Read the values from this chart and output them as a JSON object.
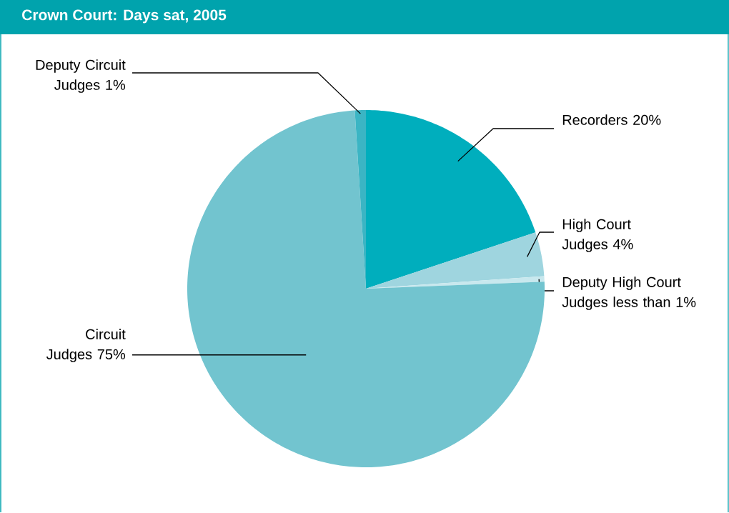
{
  "chart_data": {
    "type": "pie",
    "title": "Crown Court: Days sat, 2005",
    "categories": [
      "Recorders",
      "High Court Judges",
      "Deputy High Court Judges",
      "Circuit Judges",
      "Deputy Circuit Judges"
    ],
    "values": [
      20,
      4,
      0.5,
      75,
      1
    ],
    "value_labels": [
      "20%",
      "4%",
      "less than 1%",
      "75%",
      "1%"
    ],
    "colors": [
      "#00aebd",
      "#9fd5df",
      "#c8e8ee",
      "#72c4cf",
      "#3bb5c4"
    ]
  }
}
